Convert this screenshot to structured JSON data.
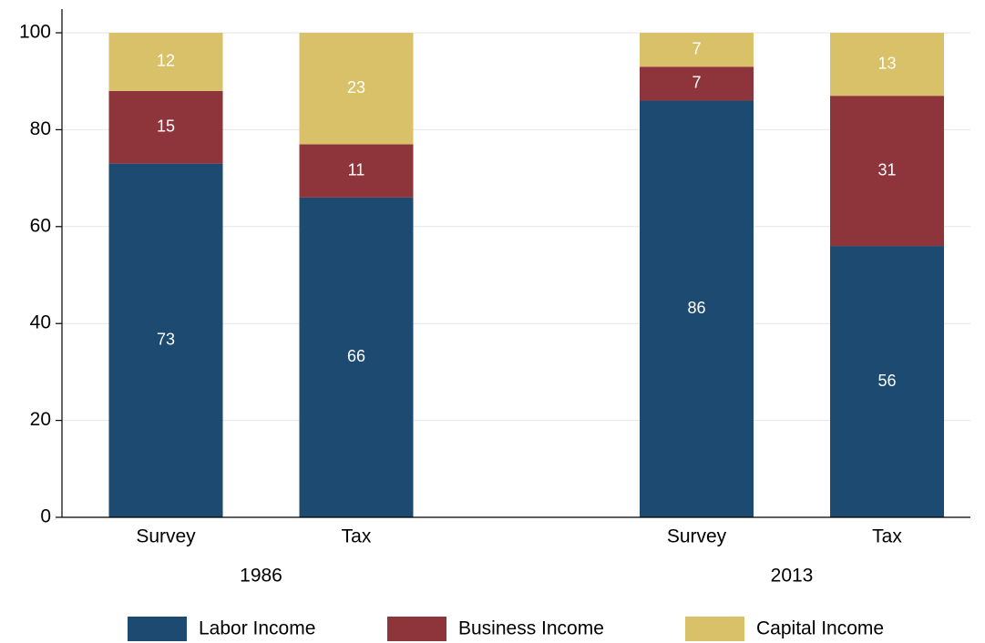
{
  "chart_data": {
    "type": "stacked-bar",
    "categories": [
      "Survey",
      "Tax",
      "Survey",
      "Tax"
    ],
    "groups": [
      "1986",
      "2013"
    ],
    "series": [
      {
        "name": "Labor Income",
        "color": "#1d4a70",
        "values": [
          73,
          66,
          86,
          56
        ]
      },
      {
        "name": "Business Income",
        "color": "#8e353c",
        "values": [
          15,
          11,
          7,
          31
        ]
      },
      {
        "name": "Capital Income",
        "color": "#d8c169",
        "values": [
          12,
          23,
          7,
          13
        ]
      }
    ],
    "ylim": [
      0,
      100
    ],
    "yticks": [
      0,
      20,
      40,
      60,
      80,
      100
    ],
    "grid": true
  }
}
